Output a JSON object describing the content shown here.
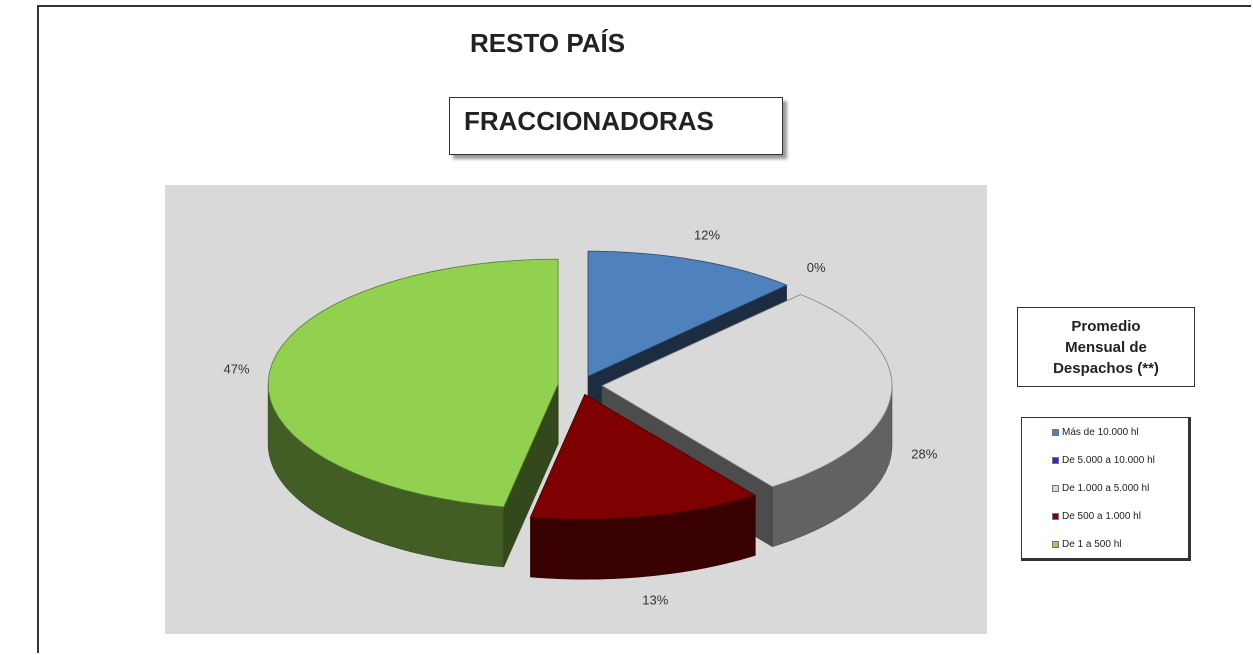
{
  "chart_data": {
    "type": "pie3d",
    "title": "RESTO PAÍS",
    "subtitle": "FRACCIONADORAS",
    "legend_title": "Promedio Mensual de Despachos (**)",
    "categories": [
      "Más de 10.000 hl",
      "De 5.000 a 10.000 hl",
      "De 1.000 a 5.000 hl",
      "De 500 a 1.000 hl",
      "De 1 a 500 hl"
    ],
    "values": [
      12,
      0,
      28,
      13,
      47
    ],
    "value_labels": [
      "12%",
      "0%",
      "28%",
      "13%",
      "47%"
    ],
    "colors": [
      "#4f81bd",
      "#2b2bd0",
      "#d9d9d9",
      "#7f0000",
      "#92d050"
    ],
    "legend": "right"
  }
}
